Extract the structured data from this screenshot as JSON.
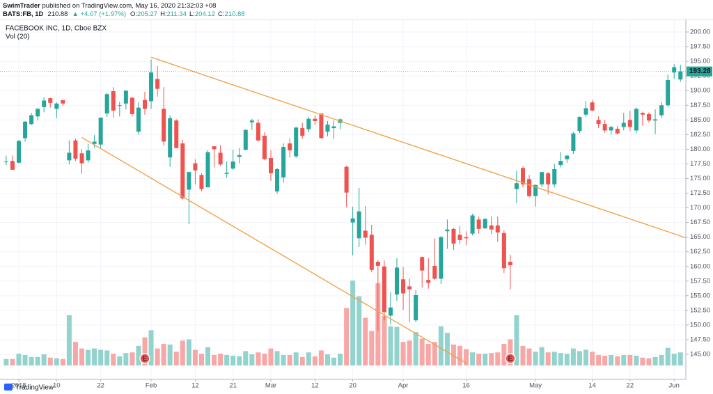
{
  "header": {
    "author": "SwimTrader",
    "published": "published on TradingView.com, May 16, 2020 21:32:03 +08",
    "symbol": "BATS:FB, 1D",
    "price": "210.88",
    "change": "▲ +4.07 (+1.97%)",
    "ohlc": [
      {
        "label": "O:",
        "value": "205.27"
      },
      {
        "label": "H:",
        "value": "211.34"
      },
      {
        "label": "L:",
        "value": "204.12"
      },
      {
        "label": "C:",
        "value": "210.88"
      }
    ]
  },
  "footer": {
    "brand": "TradingView"
  },
  "chart_data": {
    "type": "candlestick",
    "title": "FACEBOOK INC, 1D, Cboe BZX",
    "subtitle": "Vol (20)",
    "categories": [
      null,
      null,
      "2018",
      null,
      null,
      null,
      null,
      null,
      "10",
      null,
      null,
      null,
      null,
      null,
      null,
      "22",
      null,
      null,
      null,
      null,
      null,
      null,
      null,
      "Feb",
      null,
      null,
      null,
      null,
      null,
      null,
      "12",
      null,
      null,
      null,
      null,
      null,
      "21",
      null,
      null,
      null,
      null,
      null,
      "Mar",
      null,
      null,
      null,
      null,
      null,
      null,
      "12",
      null,
      null,
      null,
      null,
      null,
      "20",
      null,
      null,
      null,
      null,
      null,
      null,
      null,
      "Apr",
      null,
      null,
      null,
      null,
      null,
      null,
      null,
      null,
      null,
      "16",
      null,
      null,
      null,
      null,
      null,
      null,
      null,
      null,
      null,
      null,
      "May",
      null,
      null,
      null,
      null,
      null,
      null,
      null,
      null,
      "14",
      null,
      null,
      null,
      null,
      null,
      "22",
      null,
      null,
      null,
      null,
      null,
      null,
      "Jun",
      null
    ],
    "open": [
      177.9,
      178.0,
      177.7,
      181.9,
      184.3,
      185.6,
      187.2,
      188.7,
      186.9,
      188.4,
      178.1,
      181.5,
      179.3,
      178.1,
      180.9,
      180.8,
      186.1,
      189.9,
      187.5,
      187.8,
      188.8,
      183.0,
      188.4,
      188.2,
      192.0,
      186.9,
      178.6,
      184.9,
      181.0,
      173.1,
      177.6,
      175.6,
      173.5,
      180.5,
      179.4,
      175.8,
      176.7,
      178.7,
      179.9,
      184.6,
      184.5,
      182.3,
      178.5,
      172.8,
      175.2,
      181.0,
      178.8,
      183.6,
      183.4,
      185.2,
      186.1,
      183.0,
      183.6,
      184.5,
      177.0,
      167.5,
      164.8,
      166.1,
      165.4,
      160.8,
      160.0,
      151.6,
      155.2,
      157.8,
      156.6,
      150.8,
      161.6,
      157.7,
      160.1,
      157.9,
      166.0,
      166.4,
      165.4,
      165.0,
      165.6,
      168.0,
      166.5,
      167.0,
      167.0,
      165.7,
      160.8,
      173.2,
      176.8,
      174.9,
      172.0,
      174.0,
      175.9,
      174.0,
      177.3,
      178.3,
      179.7,
      183.1,
      185.9,
      188.0,
      185.0,
      184.3,
      183.2,
      183.5,
      183.8,
      185.0,
      183.2,
      186.2,
      186.0,
      184.9,
      185.8,
      187.5,
      193.1,
      191.9
    ],
    "high": [
      178.9,
      178.9,
      181.6,
      184.8,
      186.2,
      187.0,
      188.9,
      188.8,
      188.0,
      188.4,
      181.5,
      181.8,
      180.0,
      180.9,
      182.4,
      185.4,
      189.6,
      190.6,
      188.1,
      190.0,
      188.9,
      188.0,
      189.8,
      195.3,
      194.2,
      190.6,
      185.8,
      185.1,
      181.6,
      176.2,
      178.3,
      175.9,
      179.8,
      180.5,
      180.7,
      177.9,
      179.9,
      180.2,
      183.4,
      185.2,
      185.1,
      182.9,
      179.8,
      176.8,
      181.0,
      181.8,
      183.8,
      184.5,
      185.5,
      185.8,
      186.1,
      184.8,
      184.9,
      185.3,
      177.2,
      170.2,
      173.4,
      170.3,
      167.1,
      161.1,
      161.0,
      155.6,
      161.4,
      159.9,
      157.9,
      156.0,
      161.7,
      161.4,
      164.8,
      165.2,
      168.0,
      166.6,
      166.9,
      166.0,
      169.0,
      168.5,
      168.3,
      168.5,
      168.5,
      166.2,
      162.0,
      176.3,
      177.1,
      175.6,
      174.0,
      176.1,
      176.1,
      177.5,
      179.5,
      179.0,
      183.0,
      185.6,
      188.2,
      188.4,
      185.6,
      185.0,
      184.0,
      184.0,
      186.2,
      186.6,
      187.1,
      186.4,
      186.3,
      186.8,
      188.0,
      192.7,
      194.5,
      194.4
    ],
    "low": [
      177.3,
      176.5,
      177.6,
      181.3,
      184.1,
      184.9,
      186.3,
      187.1,
      185.3,
      187.4,
      177.4,
      178.0,
      175.8,
      177.7,
      180.2,
      180.2,
      185.5,
      185.4,
      185.6,
      186.8,
      185.6,
      182.5,
      185.9,
      186.9,
      189.0,
      180.6,
      177.0,
      180.2,
      171.4,
      167.2,
      174.0,
      172.8,
      173.5,
      176.9,
      177.2,
      175.1,
      176.5,
      177.6,
      179.8,
      183.3,
      181.3,
      178.1,
      174.6,
      172.4,
      174.3,
      178.6,
      178.5,
      181.8,
      182.9,
      184.1,
      181.8,
      182.2,
      181.8,
      183.4,
      170.1,
      161.9,
      163.3,
      163.7,
      159.0,
      149.0,
      150.8,
      150.1,
      154.1,
      152.6,
      150.5,
      150.5,
      156.4,
      156.2,
      157.7,
      157.0,
      163.0,
      162.8,
      163.8,
      163.6,
      165.3,
      165.6,
      166.4,
      165.5,
      164.2,
      158.9,
      156.1,
      170.8,
      173.5,
      171.8,
      170.2,
      173.5,
      172.3,
      173.5,
      176.9,
      177.7,
      179.2,
      182.7,
      185.5,
      186.5,
      183.6,
      182.8,
      182.5,
      182.5,
      183.2,
      183.1,
      182.8,
      184.0,
      184.5,
      182.6,
      185.3,
      187.2,
      192.0,
      191.5
    ],
    "close": [
      177.9,
      176.5,
      181.4,
      184.7,
      185.8,
      186.9,
      188.3,
      187.9,
      187.8,
      187.8,
      179.4,
      178.4,
      177.6,
      179.8,
      181.3,
      185.4,
      189.4,
      186.6,
      187.5,
      190.0,
      186.0,
      187.1,
      186.9,
      193.1,
      190.3,
      181.3,
      185.3,
      180.2,
      171.6,
      176.1,
      176.4,
      173.2,
      179.5,
      180.0,
      177.4,
      176.0,
      177.9,
      179.0,
      183.3,
      184.9,
      181.5,
      178.3,
      175.9,
      176.6,
      180.4,
      179.8,
      183.7,
      182.3,
      185.2,
      184.8,
      181.9,
      184.2,
      183.9,
      185.1,
      172.6,
      168.2,
      169.4,
      164.9,
      159.4,
      160.1,
      152.2,
      153.0,
      159.8,
      155.4,
      156.1,
      155.1,
      159.3,
      157.2,
      157.9,
      165.0,
      166.3,
      163.9,
      164.5,
      164.8,
      168.7,
      166.4,
      168.1,
      166.3,
      165.8,
      159.7,
      160.2,
      174.2,
      174.0,
      172.0,
      173.9,
      176.1,
      174.0,
      176.6,
      178.0,
      178.9,
      182.7,
      185.5,
      187.0,
      186.6,
      184.3,
      183.2,
      183.8,
      182.7,
      184.5,
      183.8,
      186.9,
      185.9,
      184.9,
      185.1,
      187.5,
      191.8,
      194.0,
      193.28
    ],
    "volume": [
      10,
      10,
      18,
      16,
      13,
      13,
      17,
      12,
      11,
      10,
      77,
      36,
      26,
      24,
      26,
      24,
      23,
      18,
      14,
      19,
      20,
      30,
      43,
      54,
      26,
      33,
      32,
      21,
      38,
      40,
      24,
      18,
      28,
      16,
      18,
      16,
      15,
      14,
      22,
      17,
      20,
      18,
      26,
      22,
      16,
      16,
      20,
      13,
      20,
      14,
      23,
      17,
      12,
      18,
      88,
      130,
      106,
      73,
      53,
      126,
      76,
      60,
      59,
      36,
      38,
      51,
      41,
      33,
      36,
      60,
      50,
      32,
      30,
      25,
      20,
      18,
      18,
      19,
      20,
      33,
      40,
      77,
      30,
      26,
      21,
      28,
      20,
      21,
      19,
      18,
      26,
      22,
      24,
      21,
      16,
      15,
      16,
      14,
      16,
      16,
      15,
      12,
      11,
      13,
      16,
      27,
      18,
      20
    ],
    "up_color": "#26a69a",
    "down_color": "#ef5350",
    "volume_up_color": "#93d3cd",
    "volume_down_color": "#f7a7a5",
    "ylim": [
      143.1,
      202.14
    ],
    "yticks": [
      {
        "value": 145,
        "label": "145.00"
      },
      {
        "value": 147.5,
        "label": "147.50"
      },
      {
        "value": 150,
        "label": "150.00"
      },
      {
        "value": 152.5,
        "label": "152.50"
      },
      {
        "value": 155,
        "label": "155.00"
      },
      {
        "value": 157.5,
        "label": "157.50"
      },
      {
        "value": 160,
        "label": "160.00"
      },
      {
        "value": 162.5,
        "label": "162.50"
      },
      {
        "value": 165,
        "label": "165.00"
      },
      {
        "value": 167.5,
        "label": "167.50"
      },
      {
        "value": 170,
        "label": "170.00"
      },
      {
        "value": 172.5,
        "label": "172.50"
      },
      {
        "value": 175,
        "label": "175.00"
      },
      {
        "value": 177.5,
        "label": "177.50"
      },
      {
        "value": 180,
        "label": "180.00"
      },
      {
        "value": 182.5,
        "label": "182.50"
      },
      {
        "value": 185,
        "label": "185.00"
      },
      {
        "value": 187.5,
        "label": "187.50"
      },
      {
        "value": 190,
        "label": "190.00"
      },
      {
        "value": 192.5,
        "label": "192.50"
      },
      {
        "value": 195,
        "label": "195.00"
      },
      {
        "value": 197.5,
        "label": "197.50"
      },
      {
        "value": 200,
        "label": "200.00"
      }
    ],
    "grid": true,
    "trendlines": [
      {
        "color": "#f0a24c",
        "from": [
          23,
          195.7
        ],
        "to": [
          107,
          165.2
        ],
        "extend_right": true
      },
      {
        "color": "#f0a24c",
        "from": [
          12,
          182.0
        ],
        "to": [
          73,
          143.5
        ],
        "extend_right": false
      }
    ],
    "events": [
      {
        "label": "E",
        "at": 22
      },
      {
        "label": "E",
        "at": 80
      }
    ]
  }
}
